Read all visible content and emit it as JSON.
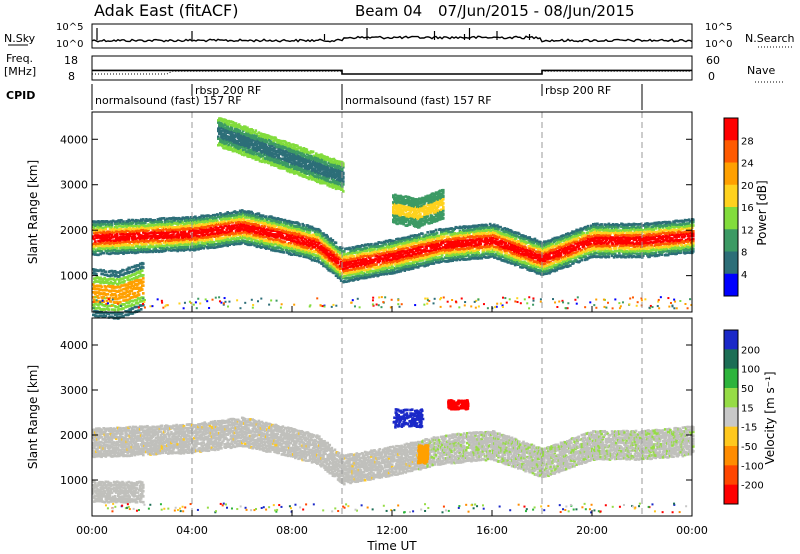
{
  "header": {
    "title": "Adak East (fitACF)",
    "beam": "Beam 04",
    "date_range": "07/Jun/2015 - 08/Jun/2015"
  },
  "top_panels": {
    "nsky_label": "N.Sky",
    "nsearch_label": "N.Search",
    "nsky_ticks": [
      "10^5",
      "10^0"
    ],
    "nsearch_ticks": [
      "10^5",
      "10^0"
    ],
    "freq_label_1": "Freq.",
    "freq_label_2": "[MHz]",
    "freq_ticks": [
      "18",
      "8"
    ],
    "nave_label": "Nave",
    "nave_ticks": [
      "60",
      "0"
    ],
    "cpid_label": "CPID",
    "cpid_segments": [
      {
        "label": "normalsound (fast) 157 RF",
        "start": 0,
        "end": 10
      },
      {
        "label": "rbsp 200 RF",
        "start": 4,
        "end": 10
      },
      {
        "label": "normalsound (fast) 157 RF",
        "start": 10,
        "end": 18
      },
      {
        "label": "rbsp 200 RF",
        "start": 18,
        "end": 22
      }
    ],
    "freq_step": {
      "high_mhz": 12,
      "low_mhz": 10.5,
      "low_start": 10,
      "low_end": 18
    },
    "nave_step": {
      "high": 22,
      "low": 15
    }
  },
  "chart_data": [
    {
      "type": "heatmap",
      "name": "power",
      "ylabel": "Slant Range [km]",
      "ylim": [
        200,
        4600
      ],
      "yticks": [
        1000,
        2000,
        3000,
        4000
      ],
      "colorbar_label": "Power [dB]",
      "colorbar_ticks": [
        "28",
        "24",
        "20",
        "16",
        "12",
        "8",
        "4"
      ],
      "colorbar_colors": [
        "#ff0000",
        "#ff5a00",
        "#ffa000",
        "#ffd21e",
        "#82dc3c",
        "#3c9a64",
        "#2d6e78",
        "#0000ff"
      ],
      "layers": [
        {
          "x": [
            0.0,
            2.0,
            4.0,
            6.0,
            8.0,
            9.0,
            10.0,
            12.0,
            14.0,
            16.0,
            18.0,
            20.0,
            22.0,
            24.0
          ],
          "y": [
            1850,
            1900,
            1950,
            2100,
            1850,
            1700,
            1250,
            1450,
            1700,
            1800,
            1400,
            1800,
            1800,
            1900
          ],
          "thickness": 350,
          "core": "red"
        },
        {
          "x": [
            0.0,
            1.0,
            2.0
          ],
          "y": [
            650,
            600,
            800
          ],
          "thickness": 500,
          "core": "orange"
        },
        {
          "x": [
            5.0,
            6.0,
            8.0,
            10.0
          ],
          "y": [
            4200,
            4000,
            3600,
            3200
          ],
          "thickness": 300,
          "core": "blue"
        },
        {
          "x": [
            12.0,
            13.0,
            14.0
          ],
          "y": [
            2500,
            2400,
            2600
          ],
          "thickness": 300,
          "core": "yellow"
        }
      ]
    },
    {
      "type": "heatmap",
      "name": "velocity",
      "xlabel": "Time UT",
      "ylabel": "Slant Range [km]",
      "ylim": [
        200,
        4600
      ],
      "yticks": [
        1000,
        2000,
        3000,
        4000
      ],
      "xticks": [
        "00:00",
        "04:00",
        "08:00",
        "12:00",
        "16:00",
        "20:00",
        "00:00"
      ],
      "xtick_hours": [
        0,
        4,
        8,
        12,
        16,
        20,
        24
      ],
      "colorbar_label": "Velocity [m s⁻¹]",
      "colorbar_ticks": [
        "200",
        "100",
        "50",
        "15",
        "-15",
        "-50",
        "-100",
        "-200"
      ],
      "colorbar_colors": [
        "#1a28c8",
        "#1c6e55",
        "#2db43c",
        "#96dc46",
        "#c8c8c8",
        "#ffc81e",
        "#ff8c00",
        "#ff4600",
        "#ff0000"
      ],
      "features": [
        {
          "region": "main-band",
          "color": "#c0c0bc"
        },
        {
          "region": "blue-patch",
          "x": [
            12.0,
            13.2
          ],
          "y": [
            2200,
            2600
          ],
          "color": "#1a28c8"
        },
        {
          "region": "red-patch",
          "x": [
            14.2,
            15.0
          ],
          "y": [
            2600,
            2800
          ],
          "color": "#ff0000"
        },
        {
          "region": "orange-patch",
          "x": [
            13.0,
            13.4
          ],
          "y": [
            1400,
            1800
          ],
          "color": "#ffa000"
        }
      ]
    }
  ],
  "dashed_hours": [
    4,
    10,
    18,
    22
  ]
}
